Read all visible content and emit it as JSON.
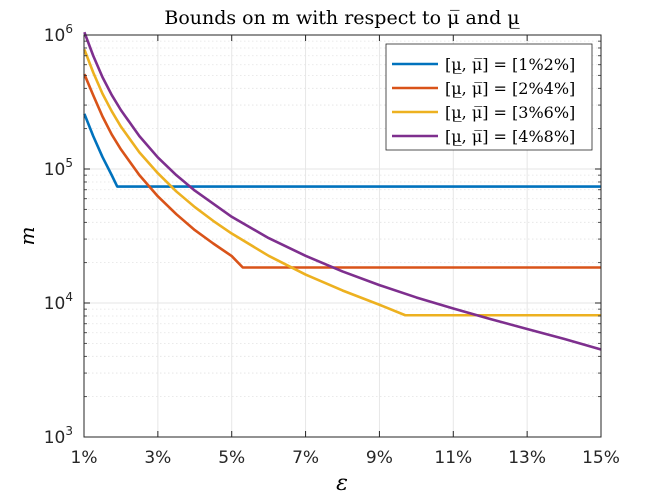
{
  "chart_data": {
    "type": "line",
    "title": "Bounds on m with respect to μ̅ and μ̲",
    "xlabel": "ε",
    "ylabel": "m",
    "x_scale": "linear",
    "y_scale": "log",
    "xlim": [
      0.01,
      0.15
    ],
    "ylim": [
      1000,
      1000000
    ],
    "x_ticks": [
      0.01,
      0.03,
      0.05,
      0.07,
      0.09,
      0.11,
      0.13,
      0.15
    ],
    "x_tick_labels": [
      "1%",
      "3%",
      "5%",
      "7%",
      "9%",
      "11%",
      "13%",
      "15%"
    ],
    "y_ticks": [
      1000,
      10000,
      100000,
      1000000
    ],
    "y_tick_labels": [
      {
        "base": "10",
        "exp": "3"
      },
      {
        "base": "10",
        "exp": "4"
      },
      {
        "base": "10",
        "exp": "5"
      },
      {
        "base": "10",
        "exp": "6"
      }
    ],
    "grid": true,
    "legend_position": "top-right",
    "series": [
      {
        "name": "[μ̲, μ̅] = [1%2%]",
        "color": "#0072BD",
        "x": [
          0.0101,
          0.0125,
          0.015,
          0.0175,
          0.019,
          0.02,
          0.04,
          0.06,
          0.08,
          0.1,
          0.12,
          0.14,
          0.15
        ],
        "y": [
          258000,
          176000,
          123000,
          90000,
          74000,
          74000,
          74000,
          74000,
          74000,
          74000,
          74000,
          74000,
          74000
        ]
      },
      {
        "name": "[μ̲, μ̅] = [2%4%]",
        "color": "#D95319",
        "x": [
          0.0101,
          0.0125,
          0.015,
          0.0175,
          0.02,
          0.025,
          0.03,
          0.035,
          0.04,
          0.045,
          0.05,
          0.053,
          0.06,
          0.08,
          0.1,
          0.12,
          0.15
        ],
        "y": [
          510000,
          355000,
          247000,
          181000,
          140000,
          90000,
          62500,
          46000,
          35000,
          27800,
          22400,
          18400,
          18400,
          18400,
          18400,
          18400,
          18400
        ]
      },
      {
        "name": "[μ̲, μ̅] = [3%6%]",
        "color": "#EDB120",
        "x": [
          0.0101,
          0.0125,
          0.015,
          0.0175,
          0.02,
          0.025,
          0.03,
          0.035,
          0.04,
          0.045,
          0.05,
          0.06,
          0.07,
          0.08,
          0.09,
          0.097,
          0.1,
          0.12,
          0.15
        ],
        "y": [
          780000,
          525000,
          365000,
          270000,
          207000,
          133000,
          93000,
          68000,
          52000,
          41000,
          33000,
          22500,
          16300,
          12400,
          9700,
          8100,
          8100,
          8100,
          8100
        ]
      },
      {
        "name": "[μ̲, μ̅] = [4%8%]",
        "color": "#7E2F8E",
        "x": [
          0.0101,
          0.0125,
          0.015,
          0.0175,
          0.02,
          0.025,
          0.03,
          0.035,
          0.04,
          0.05,
          0.06,
          0.07,
          0.08,
          0.09,
          0.1,
          0.11,
          0.12,
          0.13,
          0.14,
          0.15
        ],
        "y": [
          1050000,
          700000,
          485000,
          357000,
          275000,
          176000,
          122000,
          90000,
          69000,
          44000,
          30500,
          22500,
          17200,
          13600,
          11000,
          9100,
          7600,
          6400,
          5400,
          4500
        ]
      }
    ]
  }
}
